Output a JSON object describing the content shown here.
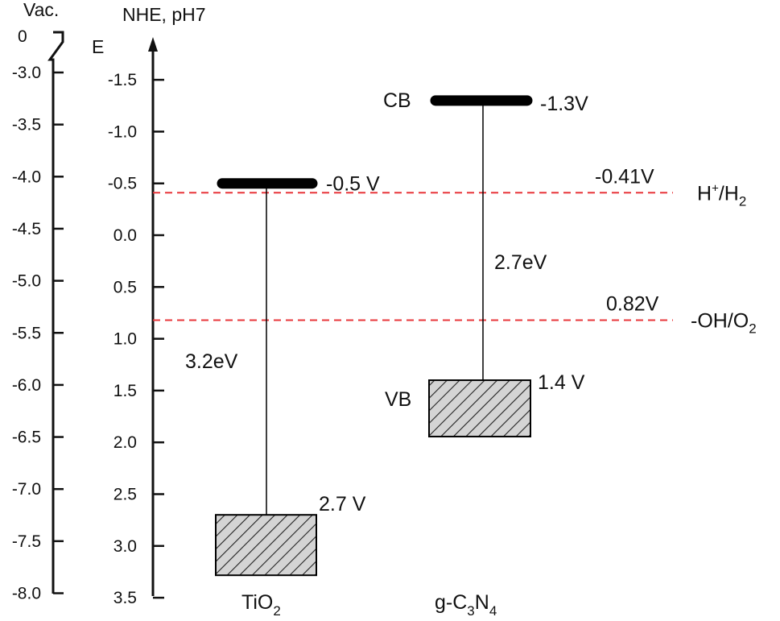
{
  "axes": {
    "vac": {
      "title": "Vac.",
      "zero_label": "0",
      "ticks": [
        "-3.0",
        "-3.5",
        "-4.0",
        "-4.5",
        "-5.0",
        "-5.5",
        "-6.0",
        "-6.5",
        "-7.0",
        "-7.5",
        "-8.0"
      ],
      "values": [
        -3.0,
        -3.5,
        -4.0,
        -4.5,
        -5.0,
        -5.5,
        -6.0,
        -6.5,
        -7.0,
        -7.5,
        -8.0
      ],
      "unit": "eV"
    },
    "nhe": {
      "title": "NHE, pH7",
      "e_label": "E",
      "ticks": [
        "-1.5",
        "-1.0",
        "-0.5",
        "0.0",
        "0.5",
        "1.0",
        "1.5",
        "2.0",
        "2.5",
        "3.0",
        "3.5"
      ],
      "values": [
        -1.5,
        -1.0,
        -0.5,
        0.0,
        0.5,
        1.0,
        1.5,
        2.0,
        2.5,
        3.0,
        3.5
      ],
      "unit": "V"
    }
  },
  "redox": [
    {
      "value_label": "-0.41V",
      "potential": -0.41,
      "couple_main": "H",
      "couple_sup": "+",
      "couple_mid": "/H",
      "couple_sub": "2",
      "couple_end": "",
      "color": "#e8363a"
    },
    {
      "value_label": "0.82V",
      "potential": 0.82,
      "couple_main": "-OH/O",
      "couple_sup": "",
      "couple_mid": "",
      "couple_sub": "2",
      "couple_end": "",
      "color": "#e8363a"
    }
  ],
  "materials": [
    {
      "name_main": "TiO",
      "name_sub": "2",
      "name_rest": "",
      "cb": -0.5,
      "cb_label": "-0.5 V",
      "vb": 2.7,
      "vb_label": "2.7 V",
      "gap_label": "3.2eV"
    },
    {
      "name_main": "g-C",
      "name_sub": "3",
      "name_rest": "N",
      "name_sub2": "4",
      "cb": -1.3,
      "cb_label": "-1.3V",
      "cb_tag": "CB",
      "vb": 1.4,
      "vb_label": "1.4 V",
      "vb_tag": "VB",
      "gap_label": "2.7eV"
    }
  ],
  "colors": {
    "axis": "#111111",
    "band_bar": "#000000",
    "vb_fill": "#d4d4d4",
    "hatch": "#222222",
    "dashed_line": "#e8363a"
  }
}
